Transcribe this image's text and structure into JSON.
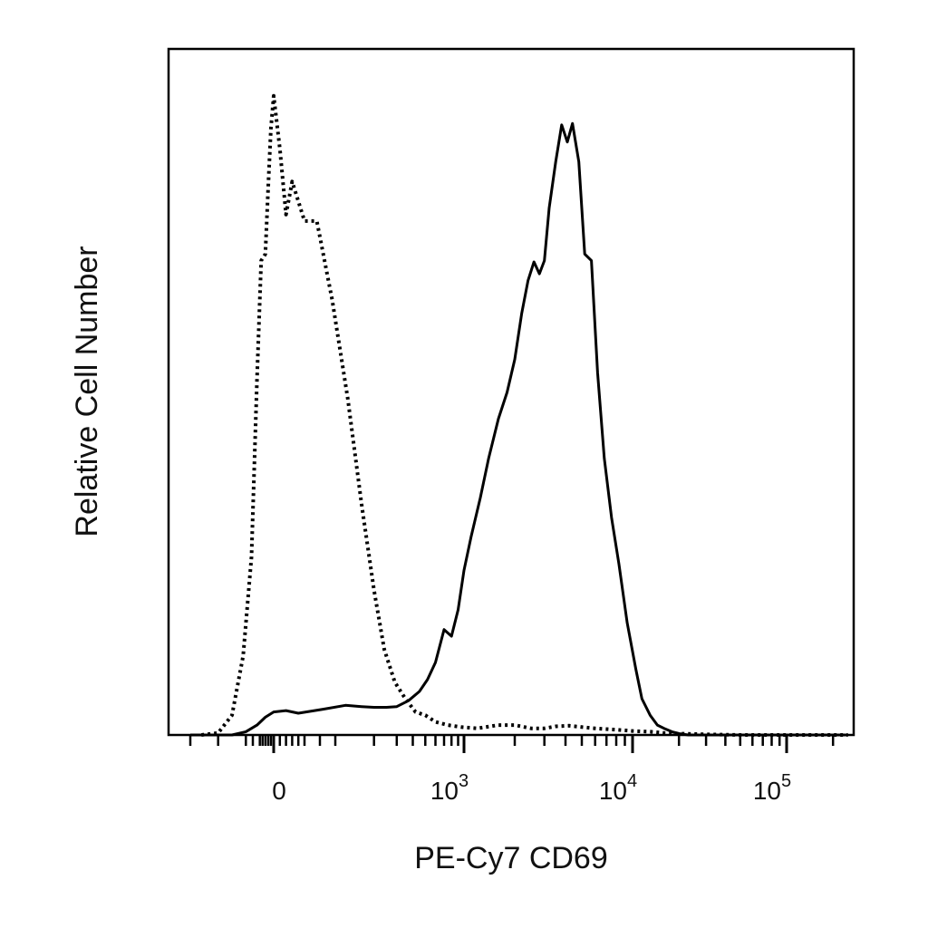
{
  "chart_data": {
    "type": "line",
    "xlabel": "PE-Cy7 CD69",
    "ylabel": "Relative Cell Number",
    "x_scale": "biexponential",
    "x_ticks": [
      {
        "value": 0,
        "base": "0",
        "exp": ""
      },
      {
        "value": 1000,
        "base": "10",
        "exp": "3"
      },
      {
        "value": 10000,
        "base": "10",
        "exp": "4"
      },
      {
        "value": 100000,
        "base": "10",
        "exp": "5"
      }
    ],
    "xlim": [
      -300,
      250000
    ],
    "ylim": [
      0,
      100
    ],
    "grid": false,
    "series": [
      {
        "style": "dotted",
        "x": [
          -260,
          -200,
          -150,
          -110,
          -80,
          -60,
          -45,
          -30,
          -20,
          -10,
          0,
          10,
          20,
          30,
          50,
          70,
          95,
          125,
          160,
          200,
          240,
          290,
          350,
          420,
          500,
          600,
          750,
          950,
          1200,
          1600,
          2000,
          2500,
          3000,
          3500,
          4200,
          5000,
          6000,
          8000,
          10000,
          13000,
          16000,
          20000,
          30000,
          50000,
          100000,
          250000
        ],
        "y": [
          0,
          0.3,
          3,
          12,
          27,
          54,
          72,
          73,
          83,
          92,
          97,
          89,
          79,
          84,
          78,
          78,
          66,
          51,
          35,
          22,
          13,
          8,
          5.5,
          3.5,
          3,
          2,
          1.5,
          1.2,
          1,
          1.5,
          1.5,
          1,
          1,
          1.3,
          1.4,
          1.2,
          1,
          0.8,
          0.6,
          0.5,
          0.3,
          0.2,
          0.1,
          0,
          0,
          0
        ]
      },
      {
        "style": "solid",
        "x": [
          -300,
          -150,
          -100,
          -60,
          -30,
          0,
          20,
          40,
          80,
          120,
          160,
          200,
          250,
          300,
          370,
          450,
          520,
          600,
          700,
          800,
          900,
          1000,
          1100,
          1250,
          1400,
          1600,
          1800,
          2000,
          2200,
          2400,
          2600,
          2800,
          3000,
          3200,
          3500,
          3800,
          4100,
          4400,
          4800,
          5200,
          5700,
          6200,
          6800,
          7500,
          8300,
          9300,
          10500,
          11500,
          13000,
          14500,
          16000,
          18000,
          20000,
          23000,
          26000,
          30000,
          35000,
          45000,
          60000,
          100000,
          250000
        ],
        "y": [
          0,
          0,
          0.5,
          1.5,
          2.7,
          3.5,
          3.7,
          3.3,
          3.9,
          4.5,
          4.3,
          4.2,
          4.2,
          4.3,
          5.2,
          6.6,
          8.4,
          11,
          16,
          15,
          19,
          25,
          30,
          36,
          42,
          48,
          52,
          57,
          64,
          69,
          71.8,
          70,
          72,
          80,
          87,
          92.6,
          90,
          92.8,
          87,
          73,
          72,
          55,
          42,
          33,
          26,
          17,
          10,
          5.5,
          3,
          1.5,
          1,
          0.5,
          0.2,
          0,
          0,
          0,
          0,
          0,
          0,
          0,
          0
        ]
      }
    ]
  }
}
